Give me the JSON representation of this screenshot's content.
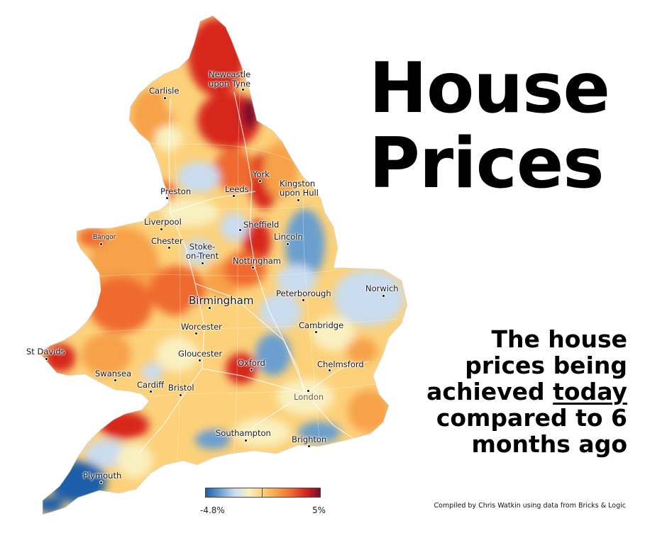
{
  "title_line1": "House",
  "title_line2": "Prices",
  "subtitle": {
    "line1": "The house",
    "line2": "prices being",
    "line3_pre": "achieved ",
    "line3_underlined": "today",
    "line4": "compared to 6",
    "line5": "months ago"
  },
  "legend": {
    "min_label": "-4.8%",
    "max_label": "5%",
    "min_value": -4.8,
    "max_value": 5,
    "colors": [
      "#1f5fa8",
      "#6b9fcf",
      "#c9dcef",
      "#f9f0c0",
      "#fcd17a",
      "#f7a14a",
      "#ef6a2f",
      "#d7261f",
      "#7a0f2a"
    ]
  },
  "credit": "Compiled by Chris Watkin using data from Bricks & Logic",
  "cities": [
    {
      "id": "newcastle",
      "label": "Newcastle\nupon Tyne"
    },
    {
      "id": "carlisle",
      "label": "Carlisle"
    },
    {
      "id": "york",
      "label": "York"
    },
    {
      "id": "kingston",
      "label": "Kingston\nupon Hull"
    },
    {
      "id": "preston",
      "label": "Preston"
    },
    {
      "id": "leeds",
      "label": "Leeds"
    },
    {
      "id": "liverpool",
      "label": "Liverpool"
    },
    {
      "id": "sheffield",
      "label": "Sheffield"
    },
    {
      "id": "lincoln",
      "label": "Lincoln"
    },
    {
      "id": "bangor",
      "label": "Bangor"
    },
    {
      "id": "chester",
      "label": "Chester"
    },
    {
      "id": "stoke",
      "label": "Stoke-\non-Trent"
    },
    {
      "id": "nottingham",
      "label": "Nottingham"
    },
    {
      "id": "norwich",
      "label": "Norwich"
    },
    {
      "id": "peterborough",
      "label": "Peterborough"
    },
    {
      "id": "birmingham",
      "label": "Birmingham"
    },
    {
      "id": "worcester",
      "label": "Worcester"
    },
    {
      "id": "cambridge",
      "label": "Cambridge"
    },
    {
      "id": "stdavids",
      "label": "St Davids"
    },
    {
      "id": "gloucester",
      "label": "Gloucester"
    },
    {
      "id": "oxford",
      "label": "Oxford"
    },
    {
      "id": "chelmsford",
      "label": "Chelmsford"
    },
    {
      "id": "swansea",
      "label": "Swansea"
    },
    {
      "id": "cardiff",
      "label": "Cardiff"
    },
    {
      "id": "bristol",
      "label": "Bristol"
    },
    {
      "id": "london",
      "label": "London"
    },
    {
      "id": "southampton",
      "label": "Southampton"
    },
    {
      "id": "brighton",
      "label": "Brighton"
    },
    {
      "id": "plymouth",
      "label": "Plymouth"
    }
  ]
}
